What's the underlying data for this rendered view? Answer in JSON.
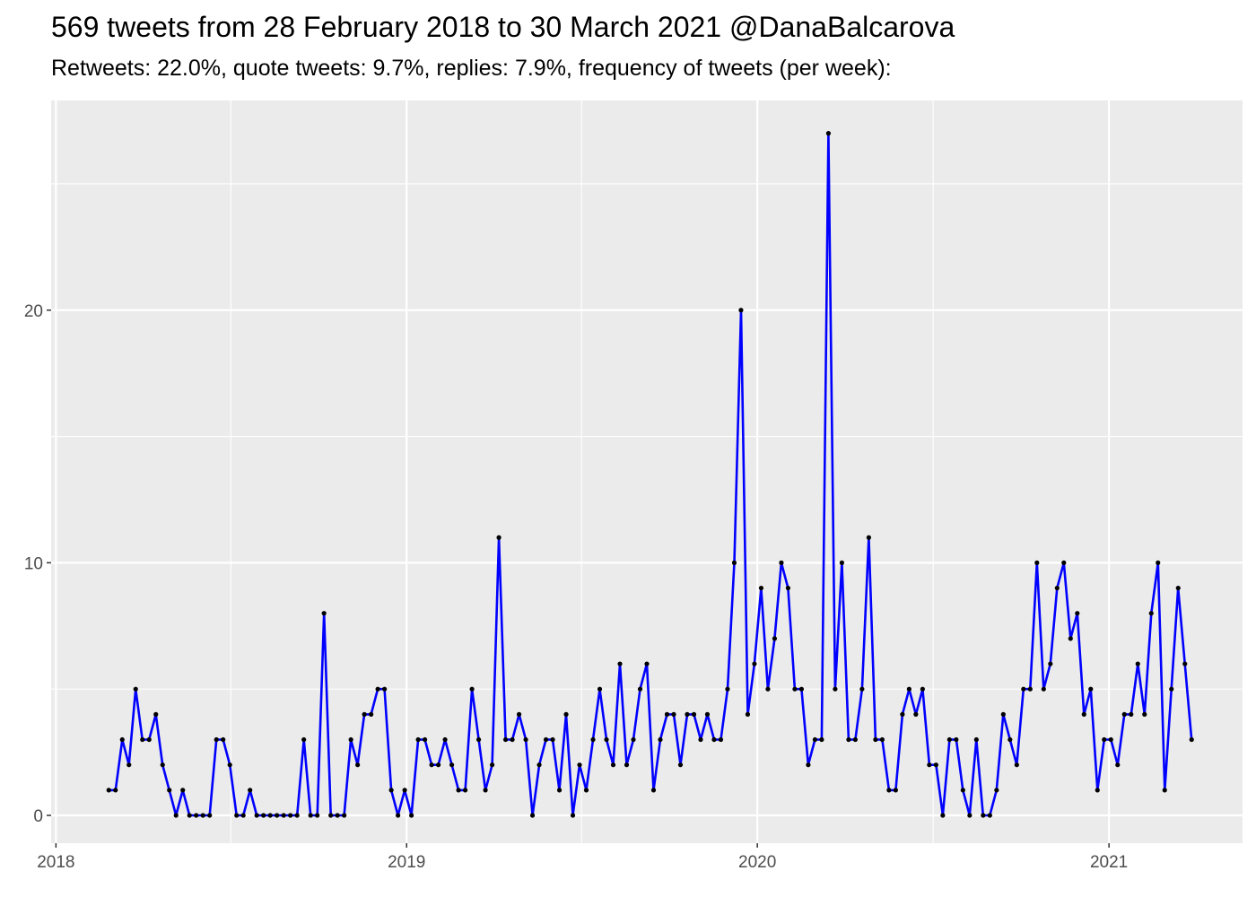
{
  "chart_data": {
    "type": "line",
    "title": "569 tweets from 28 February 2018 to 30 March 2021 @DanaBalcarova",
    "subtitle": "Retweets: 22.0%, quote tweets: 9.7%, replies: 7.9%, frequency of tweets (per week):",
    "xlabel": "",
    "ylabel": "",
    "x_ticks": [
      "2018",
      "2019",
      "2020",
      "2021"
    ],
    "y_ticks": [
      0,
      10,
      20
    ],
    "xlim": [
      "2017-12-27",
      "2021-05-20"
    ],
    "ylim": [
      -1.1,
      28.3
    ],
    "grid": true,
    "line_color": "#0000ff",
    "point_color": "#000000",
    "panel_background": "#ebebeb",
    "x": [
      "2018-02-25",
      "2018-03-04",
      "2018-03-11",
      "2018-03-18",
      "2018-03-25",
      "2018-04-01",
      "2018-04-08",
      "2018-04-15",
      "2018-04-22",
      "2018-04-29",
      "2018-05-06",
      "2018-05-13",
      "2018-05-20",
      "2018-05-27",
      "2018-06-03",
      "2018-06-10",
      "2018-06-17",
      "2018-06-24",
      "2018-07-01",
      "2018-07-08",
      "2018-07-15",
      "2018-07-22",
      "2018-07-29",
      "2018-08-05",
      "2018-08-12",
      "2018-08-19",
      "2018-08-26",
      "2018-09-02",
      "2018-09-09",
      "2018-09-16",
      "2018-09-23",
      "2018-09-30",
      "2018-10-07",
      "2018-10-14",
      "2018-10-21",
      "2018-10-28",
      "2018-11-04",
      "2018-11-11",
      "2018-11-18",
      "2018-11-25",
      "2018-12-02",
      "2018-12-09",
      "2018-12-16",
      "2018-12-23",
      "2018-12-30",
      "2019-01-06",
      "2019-01-13",
      "2019-01-20",
      "2019-01-27",
      "2019-02-03",
      "2019-02-10",
      "2019-02-17",
      "2019-02-24",
      "2019-03-03",
      "2019-03-10",
      "2019-03-17",
      "2019-03-24",
      "2019-03-31",
      "2019-04-07",
      "2019-04-14",
      "2019-04-21",
      "2019-04-28",
      "2019-05-05",
      "2019-05-12",
      "2019-05-19",
      "2019-05-26",
      "2019-06-02",
      "2019-06-09",
      "2019-06-16",
      "2019-06-23",
      "2019-06-30",
      "2019-07-07",
      "2019-07-14",
      "2019-07-21",
      "2019-07-28",
      "2019-08-04",
      "2019-08-11",
      "2019-08-18",
      "2019-08-25",
      "2019-09-01",
      "2019-09-08",
      "2019-09-15",
      "2019-09-22",
      "2019-09-29",
      "2019-10-06",
      "2019-10-13",
      "2019-10-20",
      "2019-10-27",
      "2019-11-03",
      "2019-11-10",
      "2019-11-17",
      "2019-11-24",
      "2019-12-01",
      "2019-12-08",
      "2019-12-15",
      "2019-12-22",
      "2019-12-29",
      "2020-01-05",
      "2020-01-12",
      "2020-01-19",
      "2020-01-26",
      "2020-02-02",
      "2020-02-09",
      "2020-02-16",
      "2020-02-23",
      "2020-03-01",
      "2020-03-08",
      "2020-03-15",
      "2020-03-22",
      "2020-03-29",
      "2020-04-05",
      "2020-04-12",
      "2020-04-19",
      "2020-04-26",
      "2020-05-03",
      "2020-05-10",
      "2020-05-17",
      "2020-05-24",
      "2020-05-31",
      "2020-06-07",
      "2020-06-14",
      "2020-06-21",
      "2020-06-28",
      "2020-07-05",
      "2020-07-12",
      "2020-07-19",
      "2020-07-26",
      "2020-08-02",
      "2020-08-09",
      "2020-08-16",
      "2020-08-23",
      "2020-08-30",
      "2020-09-06",
      "2020-09-13",
      "2020-09-20",
      "2020-09-27",
      "2020-10-04",
      "2020-10-11",
      "2020-10-18",
      "2020-10-25",
      "2020-11-01",
      "2020-11-08",
      "2020-11-15",
      "2020-11-22",
      "2020-11-29",
      "2020-12-06",
      "2020-12-13",
      "2020-12-20",
      "2020-12-27",
      "2021-01-03",
      "2021-01-10",
      "2021-01-17",
      "2021-01-24",
      "2021-01-31",
      "2021-02-07",
      "2021-02-14",
      "2021-02-21",
      "2021-02-28",
      "2021-03-07",
      "2021-03-14",
      "2021-03-21",
      "2021-03-28"
    ],
    "values": [
      1,
      1,
      3,
      2,
      5,
      3,
      3,
      4,
      2,
      1,
      0,
      1,
      0,
      0,
      0,
      0,
      3,
      3,
      2,
      0,
      0,
      1,
      0,
      0,
      0,
      0,
      0,
      0,
      0,
      3,
      0,
      0,
      8,
      0,
      0,
      0,
      3,
      2,
      4,
      4,
      5,
      5,
      1,
      0,
      1,
      0,
      3,
      3,
      2,
      2,
      3,
      2,
      1,
      1,
      5,
      3,
      1,
      2,
      11,
      3,
      3,
      4,
      3,
      0,
      2,
      3,
      3,
      1,
      4,
      0,
      2,
      1,
      3,
      5,
      3,
      2,
      6,
      2,
      3,
      5,
      6,
      1,
      3,
      4,
      4,
      2,
      4,
      4,
      3,
      4,
      3,
      3,
      5,
      10,
      20,
      4,
      6,
      9,
      5,
      7,
      10,
      9,
      5,
      5,
      2,
      3,
      3,
      27,
      5,
      10,
      3,
      3,
      5,
      11,
      3,
      3,
      1,
      1,
      4,
      5,
      4,
      5,
      2,
      2,
      0,
      3,
      3,
      1,
      0,
      3,
      0,
      0,
      1,
      4,
      3,
      2,
      5,
      5,
      10,
      5,
      6,
      9,
      10,
      7,
      8,
      4,
      5,
      1,
      3,
      3,
      2,
      4,
      4,
      6,
      4,
      8,
      10,
      1,
      5,
      9,
      6,
      3
    ]
  }
}
